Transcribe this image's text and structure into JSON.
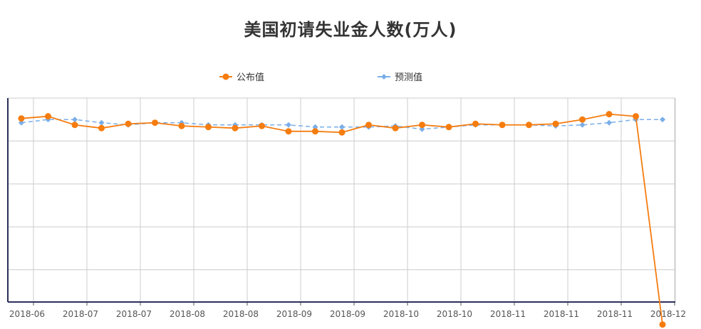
{
  "chart_data": {
    "type": "line",
    "title": "美国初请失业金人数(万人)",
    "xlabel": "",
    "ylabel": "",
    "x_tick_labels": [
      "2018-06",
      "2018-07",
      "2018-07",
      "2018-08",
      "2018-08",
      "2018-09",
      "2018-09",
      "2018-10",
      "2018-10",
      "2018-11",
      "2018-11",
      "2018-11",
      "2018-12"
    ],
    "ylim": [
      5,
      24
    ],
    "y_gridlines": [
      8,
      12,
      16,
      20
    ],
    "grid": true,
    "legend": "top",
    "series": [
      {
        "name": "公布值",
        "color": "#f57c0f",
        "style": "solid",
        "marker": "circle",
        "values": [
          22.1,
          22.3,
          21.5,
          21.2,
          21.6,
          21.7,
          21.4,
          21.3,
          21.2,
          21.4,
          20.9,
          20.9,
          20.8,
          21.5,
          21.2,
          21.5,
          21.3,
          21.6,
          21.5,
          21.5,
          21.6,
          22.0,
          22.5,
          22.3,
          2.9
        ]
      },
      {
        "name": "预测值",
        "color": "#7aaee8",
        "style": "dashed",
        "marker": "diamond",
        "values": [
          21.7,
          22.0,
          22.0,
          21.7,
          21.5,
          21.7,
          21.7,
          21.5,
          21.5,
          21.5,
          21.5,
          21.3,
          21.3,
          21.3,
          21.4,
          21.1,
          21.3,
          21.5,
          21.5,
          21.5,
          21.4,
          21.5,
          21.7,
          22.0,
          22.0
        ]
      }
    ]
  }
}
